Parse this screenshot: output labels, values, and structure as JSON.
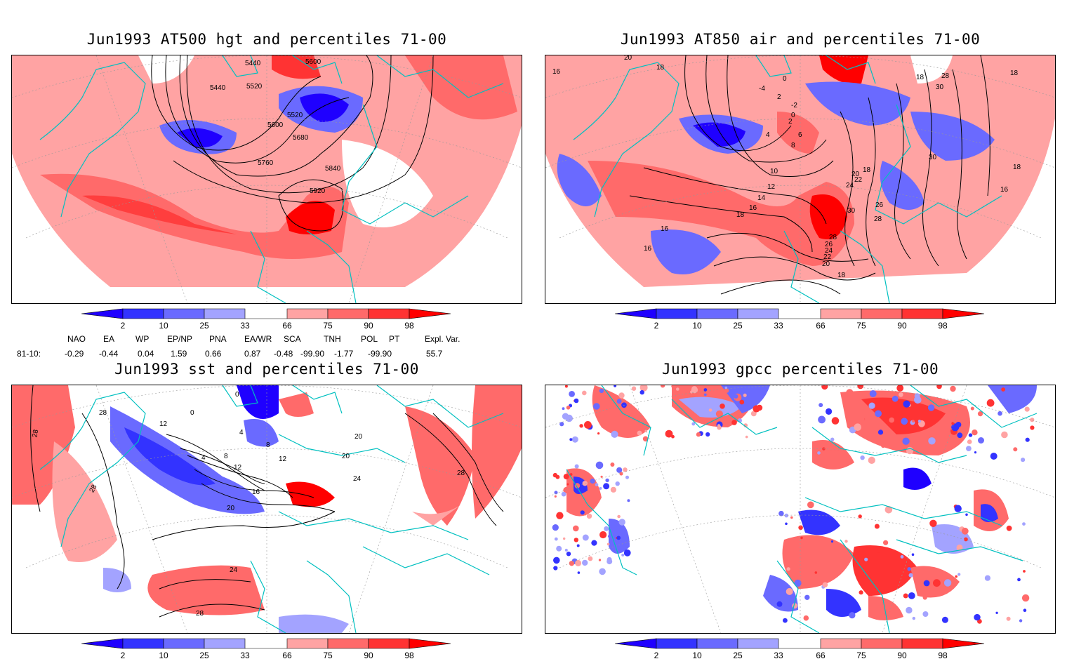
{
  "panels": {
    "top_left": {
      "title": "Jun1993 AT500 hgt and percentiles 71-00",
      "contour_labels": [
        "5440",
        "5440",
        "5520",
        "5520",
        "5600",
        "5600",
        "5680",
        "5760",
        "5840",
        "5920"
      ]
    },
    "top_right": {
      "title": "Jun1993 AT850 air and percentiles 71-00",
      "contour_labels": [
        "20",
        "16",
        "18",
        "-4",
        "0",
        "2",
        "-2",
        "0",
        "2",
        "4",
        "6",
        "8",
        "10",
        "12",
        "14",
        "16",
        "18",
        "18",
        "20",
        "22",
        "24",
        "26",
        "28",
        "30",
        "28",
        "26",
        "24",
        "22",
        "20",
        "18",
        "18",
        "28",
        "30",
        "30",
        "18",
        "18",
        "16",
        "16",
        "16"
      ]
    },
    "bottom_left": {
      "title": "Jun1993 sst and percentiles 71-00",
      "contour_labels": [
        "28",
        "28",
        "28",
        "12",
        "0",
        "0",
        "4",
        "8",
        "12",
        "16",
        "20",
        "24",
        "28",
        "4",
        "8",
        "12",
        "20",
        "20",
        "24",
        "28"
      ]
    },
    "bottom_right": {
      "title": "Jun1993 gpcc percentiles 71-00",
      "contour_labels": []
    }
  },
  "colorbar": {
    "ticks": [
      "2",
      "10",
      "25",
      "33",
      "66",
      "75",
      "90",
      "98"
    ],
    "colors": [
      "#1f00ff",
      "#3333ff",
      "#6a6aff",
      "#a3a3ff",
      "#ffa3a3",
      "#ff6a6a",
      "#ff3333",
      "#ff0000"
    ]
  },
  "teleconnections": {
    "headers": [
      "NAO",
      "EA",
      "WP",
      "EP/NP",
      "PNA",
      "EA/WR",
      "SCA",
      "TNH",
      "POL",
      "PT",
      "Expl. Var."
    ],
    "row_label": "81-10:",
    "values": [
      "-0.29",
      "-0.44",
      "0.04",
      "1.59",
      "0.66",
      "0.87",
      "-0.48",
      "-99.90",
      "-1.77",
      "-99.90",
      "55.7"
    ]
  },
  "colors": {
    "coastline": "#00c0c0",
    "grid": "#999999"
  }
}
